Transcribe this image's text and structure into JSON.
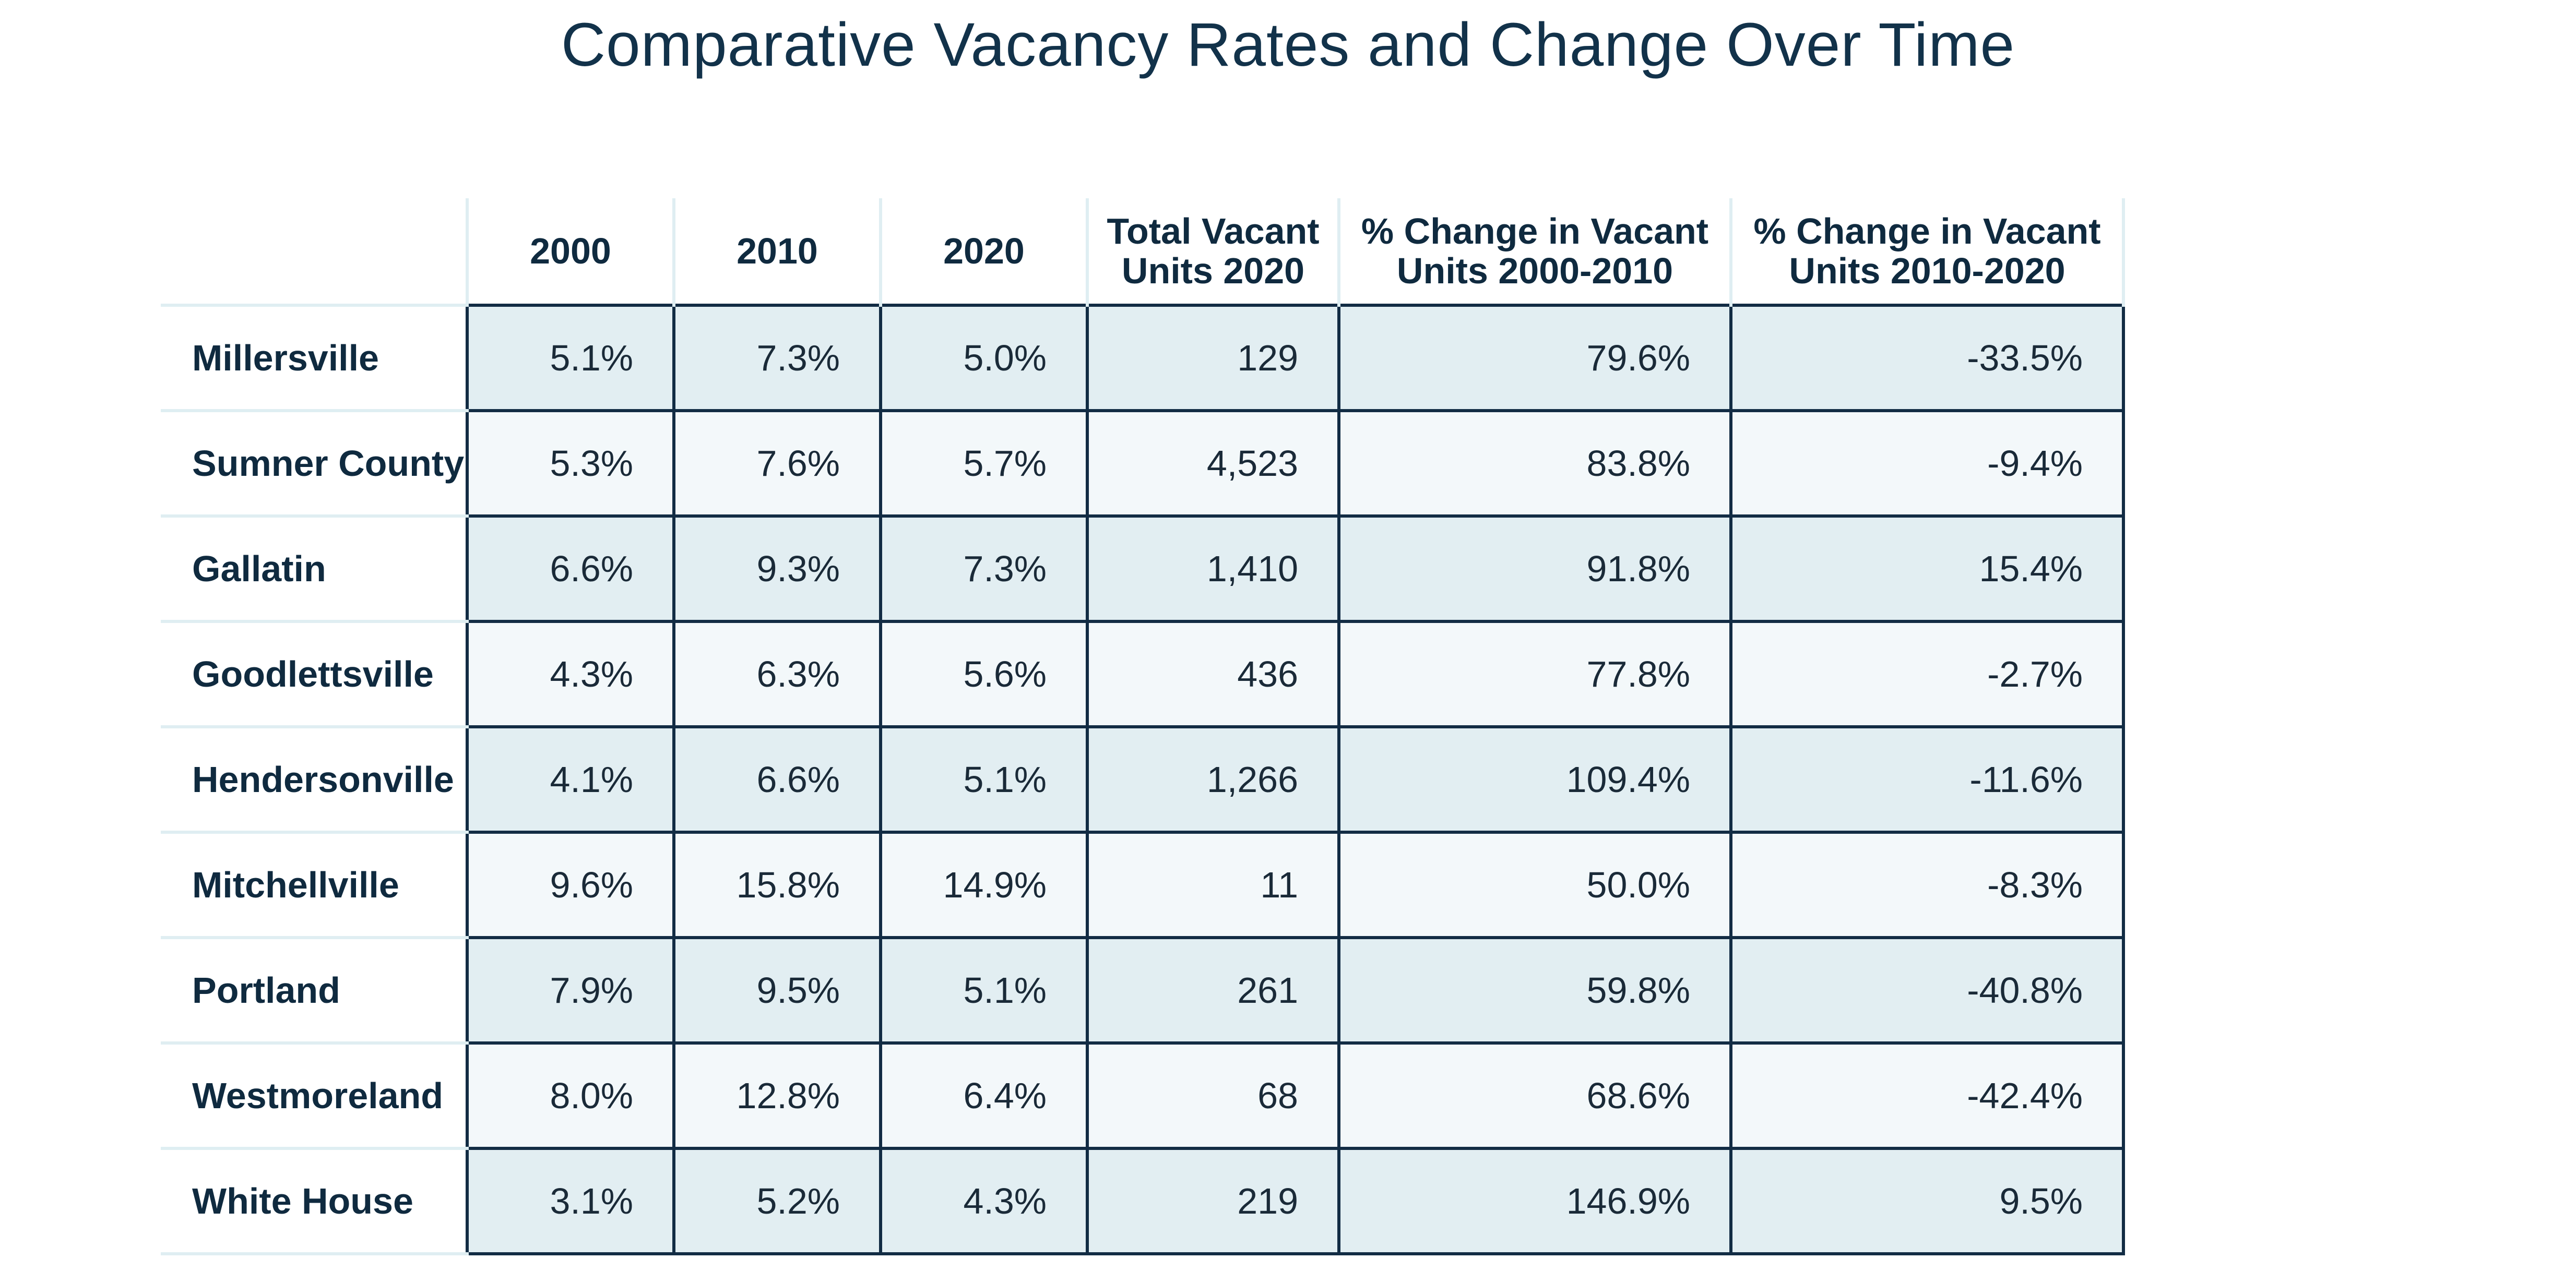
{
  "title": "Comparative Vacancy Rates and Change Over Time",
  "header": {
    "corner": "",
    "columns": [
      {
        "line1": "2000",
        "line2": ""
      },
      {
        "line1": "2010",
        "line2": ""
      },
      {
        "line1": "2020",
        "line2": ""
      },
      {
        "line1": "Total Vacant",
        "line2": "Units 2020"
      },
      {
        "line1": "% Change in Vacant",
        "line2": "Units 2000-2010"
      },
      {
        "line1": "% Change in Vacant",
        "line2": "Units 2010-2020"
      }
    ]
  },
  "rows": [
    {
      "name": "Millersville",
      "cells": [
        "5.1%",
        "7.3%",
        "5.0%",
        "129",
        "79.6%",
        "-33.5%"
      ]
    },
    {
      "name": "Sumner County",
      "cells": [
        "5.3%",
        "7.6%",
        "5.7%",
        "4,523",
        "83.8%",
        "-9.4%"
      ]
    },
    {
      "name": "Gallatin",
      "cells": [
        "6.6%",
        "9.3%",
        "7.3%",
        "1,410",
        "91.8%",
        "15.4%"
      ]
    },
    {
      "name": "Goodlettsville",
      "cells": [
        "4.3%",
        "6.3%",
        "5.6%",
        "436",
        "77.8%",
        "-2.7%"
      ]
    },
    {
      "name": "Hendersonville",
      "cells": [
        "4.1%",
        "6.6%",
        "5.1%",
        "1,266",
        "109.4%",
        "-11.6%"
      ]
    },
    {
      "name": "Mitchellville",
      "cells": [
        "9.6%",
        "15.8%",
        "14.9%",
        "11",
        "50.0%",
        "-8.3%"
      ]
    },
    {
      "name": "Portland",
      "cells": [
        "7.9%",
        "9.5%",
        "5.1%",
        "261",
        "59.8%",
        "-40.8%"
      ]
    },
    {
      "name": "Westmoreland",
      "cells": [
        "8.0%",
        "12.8%",
        "6.4%",
        "68",
        "68.6%",
        "-42.4%"
      ]
    },
    {
      "name": "White House",
      "cells": [
        "3.1%",
        "5.2%",
        "4.3%",
        "219",
        "146.9%",
        "9.5%"
      ]
    }
  ],
  "colors": {
    "title": "#12324a",
    "grid_dark": "#122c44",
    "grid_light": "#dfeef2",
    "row_shade_a": "#e2eef2",
    "row_shade_b": "#f3f8fa"
  }
}
